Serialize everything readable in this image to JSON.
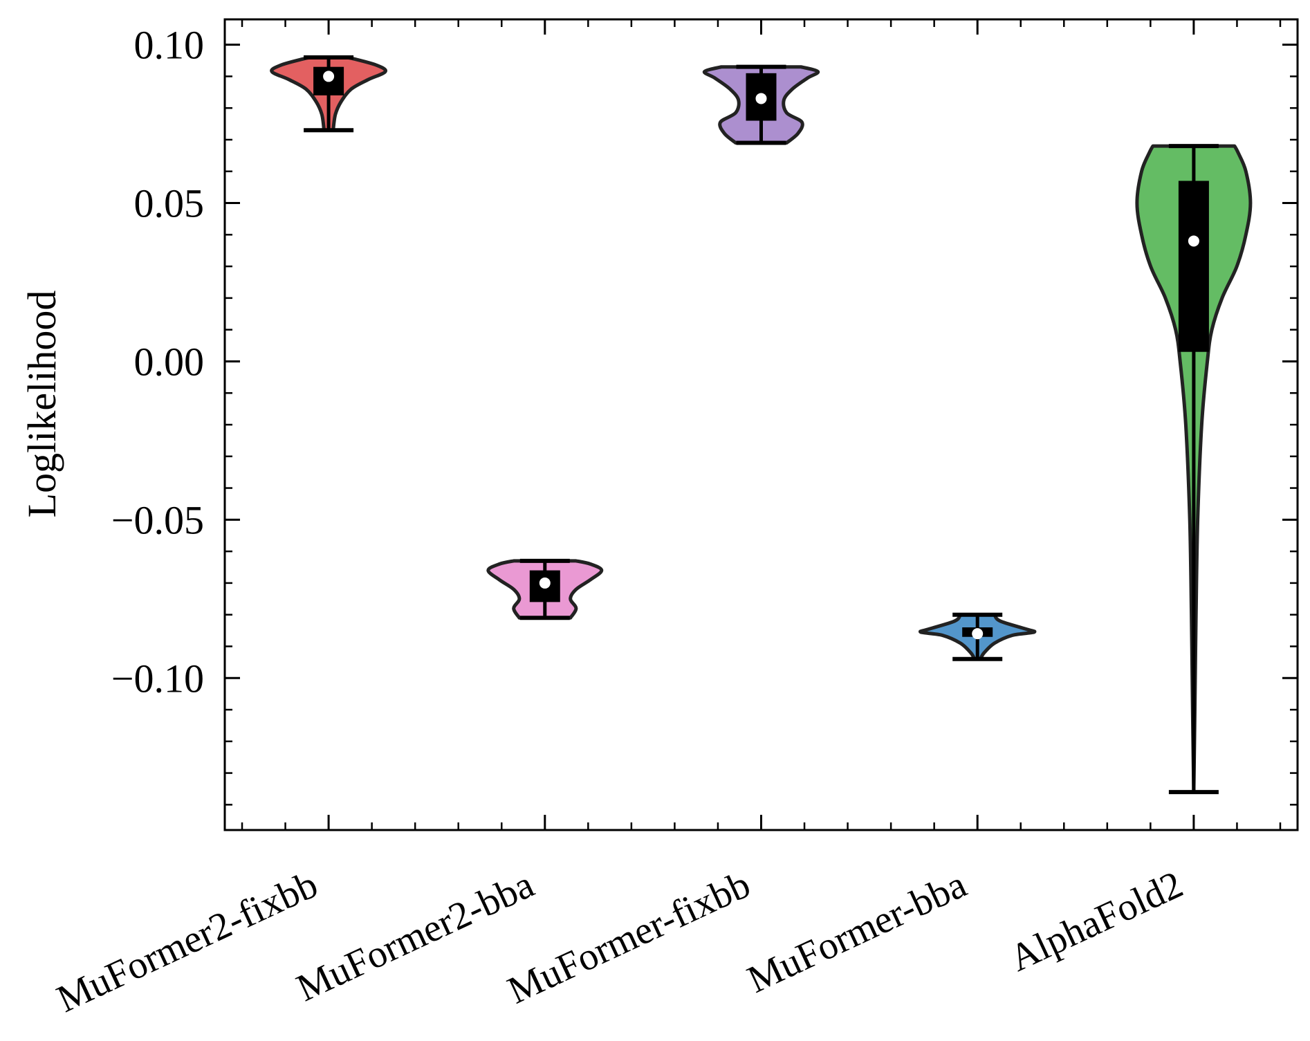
{
  "chart_data": {
    "type": "violin",
    "title": "",
    "xlabel": "",
    "ylabel": "Loglikelihood",
    "ylim": [
      -0.148,
      0.108
    ],
    "yticks": [
      0.1,
      0.05,
      0.0,
      -0.05,
      -0.1
    ],
    "ytick_labels": [
      "0.10",
      "0.05",
      "0.00",
      "−0.05",
      "−0.10"
    ],
    "grid": false,
    "legend": "none",
    "categories": [
      "MuFormer2-fixbb",
      "MuFormer2-bba",
      "MuFormer-fixbb",
      "MuFormer-bba",
      "AlphaFold2"
    ],
    "series": [
      {
        "category": "MuFormer2-fixbb",
        "color": "#e15759",
        "min": 0.073,
        "max": 0.096,
        "q1": 0.084,
        "median": 0.09,
        "q3": 0.093,
        "density_profile": [
          [
            0.073,
            0.08
          ],
          [
            0.078,
            0.12
          ],
          [
            0.082,
            0.22
          ],
          [
            0.086,
            0.4
          ],
          [
            0.089,
            0.7
          ],
          [
            0.0915,
            1.0
          ],
          [
            0.0935,
            0.85
          ],
          [
            0.0955,
            0.45
          ],
          [
            0.096,
            0.3
          ]
        ]
      },
      {
        "category": "MuFormer2-bba",
        "color": "#e994d1",
        "min": -0.081,
        "max": -0.063,
        "q1": -0.076,
        "median": -0.07,
        "q3": -0.066,
        "density_profile": [
          [
            -0.081,
            0.45
          ],
          [
            -0.078,
            0.55
          ],
          [
            -0.075,
            0.45
          ],
          [
            -0.072,
            0.55
          ],
          [
            -0.069,
            0.8
          ],
          [
            -0.066,
            1.0
          ],
          [
            -0.064,
            0.8
          ],
          [
            -0.063,
            0.55
          ]
        ]
      },
      {
        "category": "MuFormer-fixbb",
        "color": "#a889cc",
        "min": 0.069,
        "max": 0.093,
        "q1": 0.076,
        "median": 0.083,
        "q3": 0.091,
        "density_profile": [
          [
            0.069,
            0.45
          ],
          [
            0.072,
            0.65
          ],
          [
            0.0755,
            0.72
          ],
          [
            0.0785,
            0.45
          ],
          [
            0.0825,
            0.4
          ],
          [
            0.086,
            0.55
          ],
          [
            0.0895,
            0.82
          ],
          [
            0.0915,
            1.0
          ],
          [
            0.093,
            0.7
          ]
        ]
      },
      {
        "category": "MuFormer-bba",
        "color": "#4a90c8",
        "min": -0.094,
        "max": -0.08,
        "q1": -0.087,
        "median": -0.086,
        "q3": -0.084,
        "density_profile": [
          [
            -0.094,
            0.05
          ],
          [
            -0.092,
            0.12
          ],
          [
            -0.089,
            0.3
          ],
          [
            -0.0865,
            0.62
          ],
          [
            -0.0855,
            1.0
          ],
          [
            -0.0845,
            0.85
          ],
          [
            -0.082,
            0.4
          ],
          [
            -0.08,
            0.3
          ]
        ]
      },
      {
        "category": "AlphaFold2",
        "color": "#5cb85c",
        "min": -0.136,
        "max": 0.068,
        "q1": 0.003,
        "median": 0.038,
        "q3": 0.057,
        "density_profile": [
          [
            -0.136,
            0.0
          ],
          [
            -0.11,
            0.02
          ],
          [
            -0.08,
            0.04
          ],
          [
            -0.05,
            0.07
          ],
          [
            -0.02,
            0.14
          ],
          [
            0.0,
            0.24
          ],
          [
            0.01,
            0.32
          ],
          [
            0.02,
            0.5
          ],
          [
            0.03,
            0.76
          ],
          [
            0.04,
            0.92
          ],
          [
            0.05,
            1.0
          ],
          [
            0.06,
            0.92
          ],
          [
            0.066,
            0.78
          ],
          [
            0.068,
            0.72
          ]
        ]
      }
    ]
  }
}
